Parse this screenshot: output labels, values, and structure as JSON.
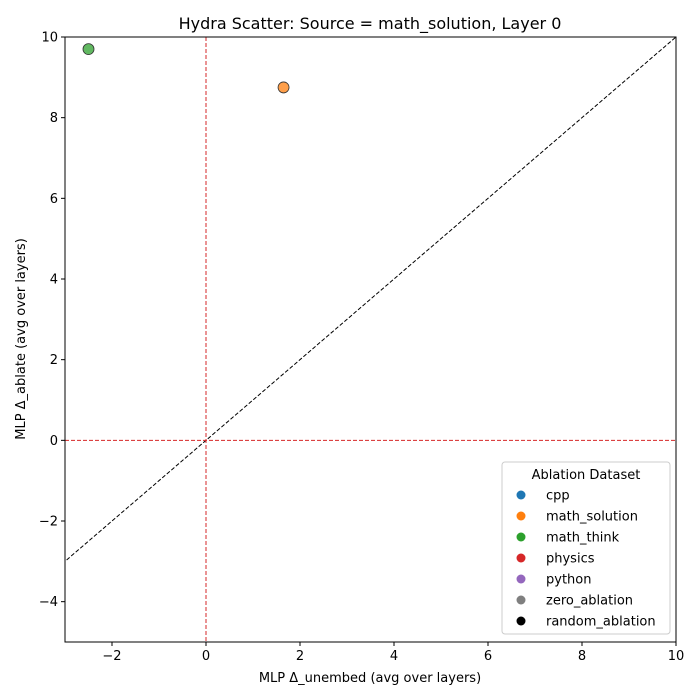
{
  "chart_data": {
    "type": "scatter",
    "title": "Hydra Scatter: Source = math_solution, Layer 0",
    "xlabel": "MLP Δ_unembed (avg over layers)",
    "ylabel": "MLP Δ_ablate (avg over layers)",
    "xlim": [
      -3,
      10
    ],
    "ylim": [
      -5,
      10
    ],
    "xticks": [
      -2,
      0,
      2,
      4,
      6,
      8,
      10
    ],
    "yticks": [
      -4,
      -2,
      0,
      2,
      4,
      6,
      8,
      10
    ],
    "grid": false,
    "reference_lines": [
      {
        "kind": "diagonal",
        "style": "dashed",
        "color": "#000000"
      },
      {
        "kind": "vertical",
        "at": 0,
        "style": "dashed",
        "color": "#d62728"
      },
      {
        "kind": "horizontal",
        "at": 0,
        "style": "dashed",
        "color": "#d62728"
      }
    ],
    "series": [
      {
        "name": "cpp",
        "color": "#1f77b4",
        "points": []
      },
      {
        "name": "math_solution",
        "color": "#ff7f0e",
        "points": [
          [
            1.65,
            8.75
          ]
        ]
      },
      {
        "name": "math_think",
        "color": "#2ca02c",
        "points": [
          [
            -2.5,
            9.7
          ]
        ]
      },
      {
        "name": "physics",
        "color": "#d62728",
        "points": []
      },
      {
        "name": "python",
        "color": "#9467bd",
        "points": []
      },
      {
        "name": "zero_ablation",
        "color": "#7f7f7f",
        "points": []
      },
      {
        "name": "random_ablation",
        "color": "#000000",
        "points": []
      }
    ],
    "legend": {
      "title": "Ablation Dataset",
      "placement": "lower-right"
    }
  }
}
